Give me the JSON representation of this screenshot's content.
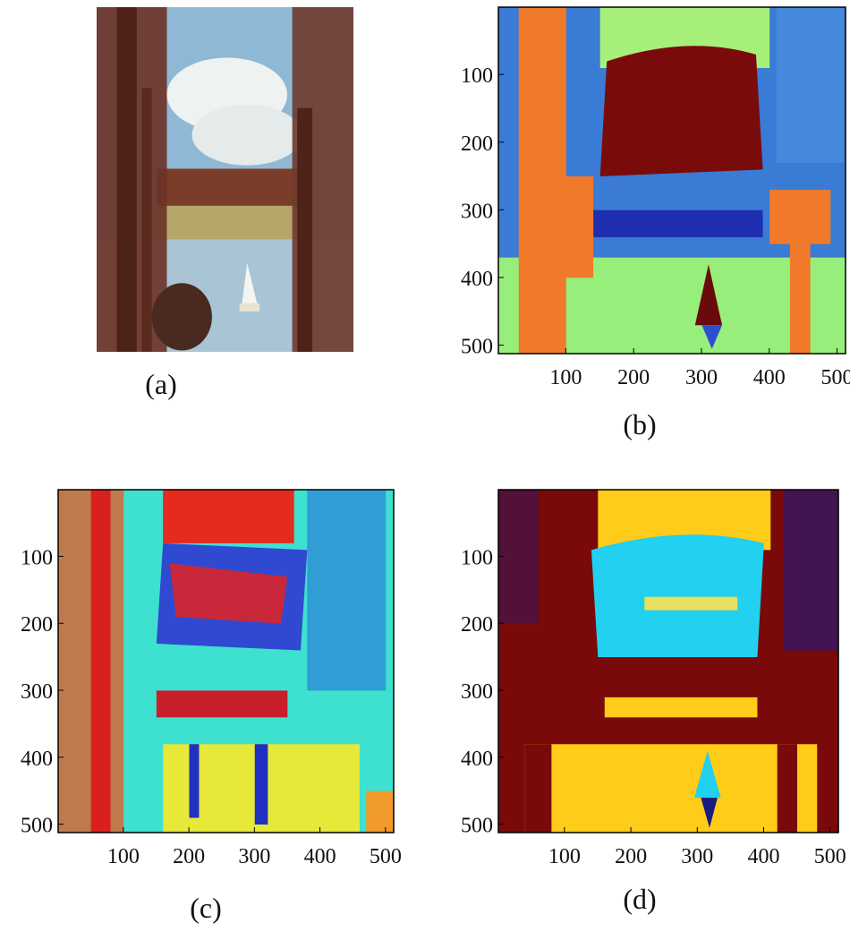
{
  "panels": [
    {
      "caption": "(a)"
    },
    {
      "caption": "(b)",
      "xticks": [
        100,
        200,
        300,
        400,
        500
      ],
      "yticks": [
        100,
        200,
        300,
        400,
        500
      ]
    },
    {
      "caption": "(c)",
      "xticks": [
        100,
        200,
        300,
        400,
        500
      ],
      "yticks": [
        100,
        200,
        300,
        400,
        500
      ]
    },
    {
      "caption": "(d)",
      "xticks": [
        100,
        200,
        300,
        400,
        500
      ],
      "yticks": [
        100,
        200,
        300,
        400,
        500
      ]
    }
  ]
}
